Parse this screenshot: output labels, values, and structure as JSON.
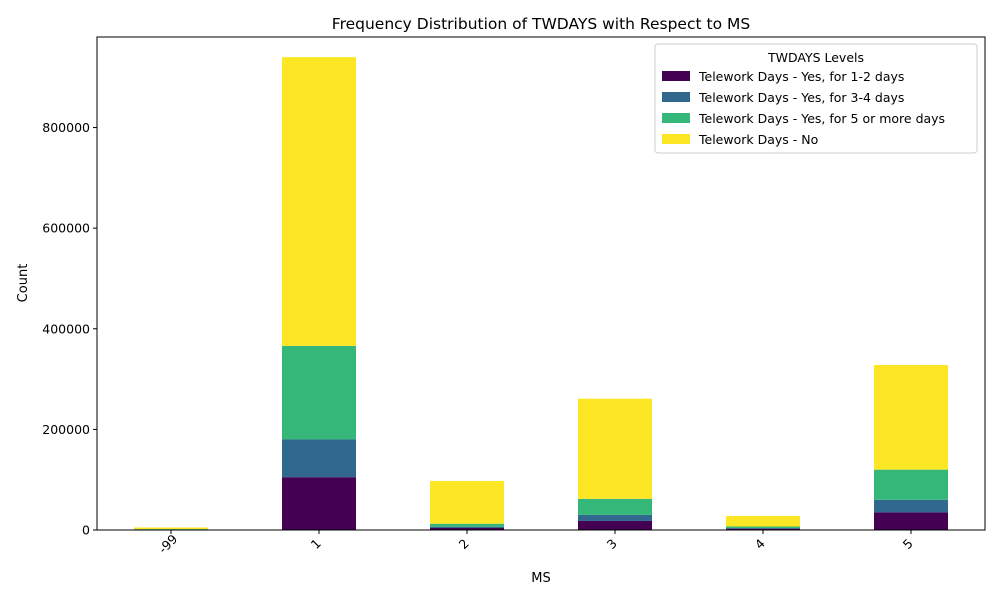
{
  "chart_data": {
    "type": "bar",
    "stacked": true,
    "title": "Frequency Distribution of TWDAYS with Respect to MS",
    "xlabel": "MS",
    "ylabel": "Count",
    "categories": [
      "-99",
      "1",
      "2",
      "3",
      "4",
      "5"
    ],
    "ylim": [
      0,
      980000
    ],
    "yticks": [
      0,
      200000,
      400000,
      600000,
      800000
    ],
    "legend": {
      "title": "TWDAYS Levels",
      "position": "top-right"
    },
    "series": [
      {
        "name": "Telework Days - Yes, for 1-2 days",
        "color": "#440154",
        "values": [
          800,
          105000,
          4000,
          18000,
          2500,
          35000
        ]
      },
      {
        "name": "Telework Days - Yes, for 3-4 days",
        "color": "#31688e",
        "values": [
          300,
          75000,
          2500,
          12000,
          1500,
          25000
        ]
      },
      {
        "name": "Telework Days - Yes, for 5 or more days",
        "color": "#35b779",
        "values": [
          700,
          186000,
          6000,
          32000,
          3000,
          60000
        ]
      },
      {
        "name": "Telework Days - No",
        "color": "#fde725",
        "values": [
          3200,
          574000,
          85000,
          199000,
          21000,
          208000
        ]
      }
    ]
  }
}
